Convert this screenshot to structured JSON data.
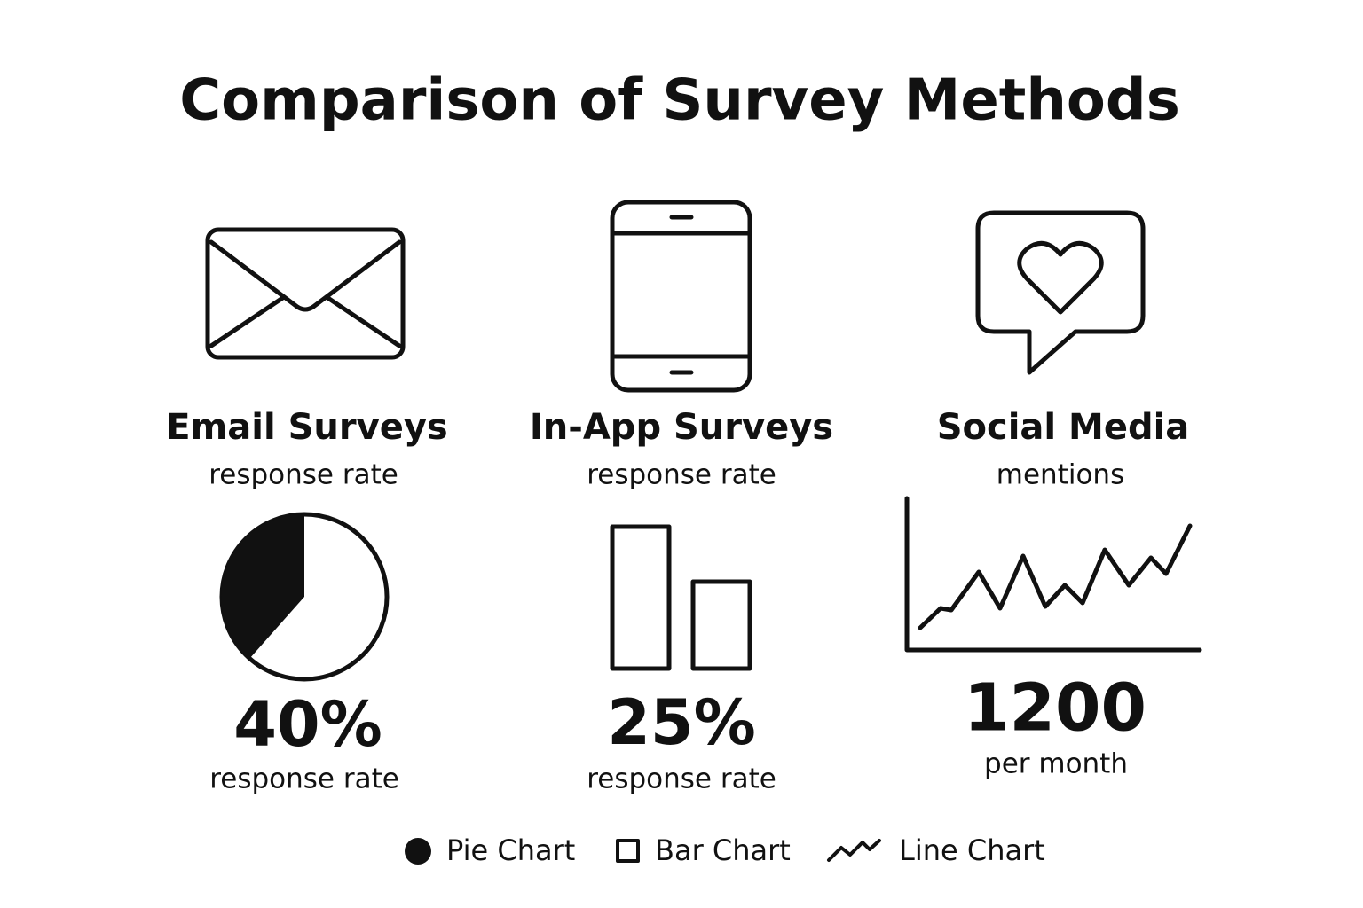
{
  "header": {
    "title": "Comparison of Survey Methods"
  },
  "panels": [
    {
      "title": "Email Surveys",
      "subtitle": "response rate",
      "value": "40%",
      "caption": "response rate"
    },
    {
      "title": "In-App Surveys",
      "subtitle": "response rate",
      "value": "25%",
      "caption": "response rate"
    },
    {
      "title": "Social Media",
      "subtitle": "mentions",
      "value": "1200",
      "caption": "per month"
    }
  ],
  "legend": [
    "Pie Chart",
    "Bar Chart",
    "Line Chart"
  ]
}
